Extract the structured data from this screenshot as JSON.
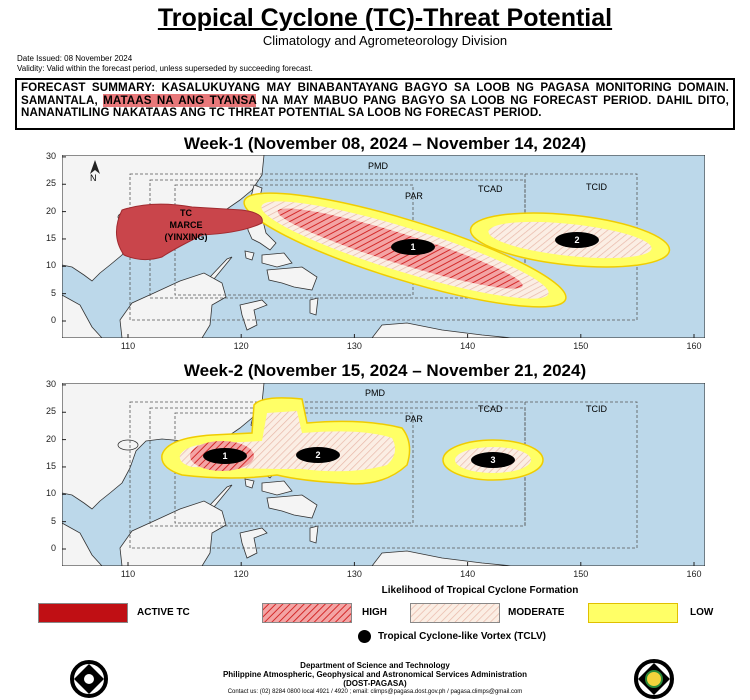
{
  "header": {
    "title": "Tropical Cyclone (TC)-Threat Potential",
    "subtitle": "Climatology and Agrometeorology Division",
    "date_issued": "Date Issued: 08 November 2024",
    "validity": "Validity: Valid within the forecast period, unless superseded by succeeding forecast."
  },
  "summary": {
    "before": "FORECAST SUMMARY: KASALUKUYANG MAY BINABANTAYANG BAGYO SA LOOB NG PAGASA MONITORING DOMAIN. SAMANTALA, ",
    "highlight": "MATAAS NA ANG TYANSA",
    "after": " NA MAY MABUO PANG BAGYO SA LOOB NG FORECAST PERIOD. DAHIL DITO, NANANATILING NAKATAAS ANG TC THREAT POTENTIAL SA LOOB NG FORECAST PERIOD."
  },
  "maps": [
    {
      "title": "Week-1 (November 08, 2024 – November 14, 2024)",
      "yticks": [
        0,
        5,
        10,
        15,
        20,
        25,
        30
      ],
      "xticks": [
        110,
        120,
        130,
        140,
        150,
        160
      ],
      "north": "N",
      "regions": {
        "pmd": "PMD",
        "par": "PAR",
        "tcad": "TCAD",
        "tcid": "TCID"
      },
      "active_tc": [
        "TC",
        "MARCE",
        "(YINXING)"
      ],
      "vortices": [
        "1",
        "2"
      ]
    },
    {
      "title": "Week-2 (November 15, 2024 – November 21, 2024)",
      "yticks": [
        0,
        5,
        10,
        15,
        20,
        25,
        30
      ],
      "xticks": [
        110,
        120,
        130,
        140,
        150,
        160
      ],
      "regions": {
        "pmd": "PMD",
        "par": "PAR",
        "tcad": "TCAD",
        "tcid": "TCID"
      },
      "vortices": [
        "1",
        "2",
        "3"
      ]
    }
  ],
  "legend": {
    "title": "Likelihood of Tropical Cyclone Formation",
    "active_tc": "ACTIVE TC",
    "high": "HIGH",
    "moderate": "MODERATE",
    "low": "LOW",
    "tclv": "Tropical Cyclone-like Vortex (TCLV)"
  },
  "footer": {
    "agency": "Department of Science and Technology",
    "name": "Philippine Atmospheric, Geophysical and Astronomical Services Administration",
    "short": "(DOST-PAGASA)",
    "contact": "Contact us: (02) 8284 0800 local 4921 / 4920 ; email: climps@pagasa.dost.gov.ph / pagasa.climps@gmail.com"
  }
}
